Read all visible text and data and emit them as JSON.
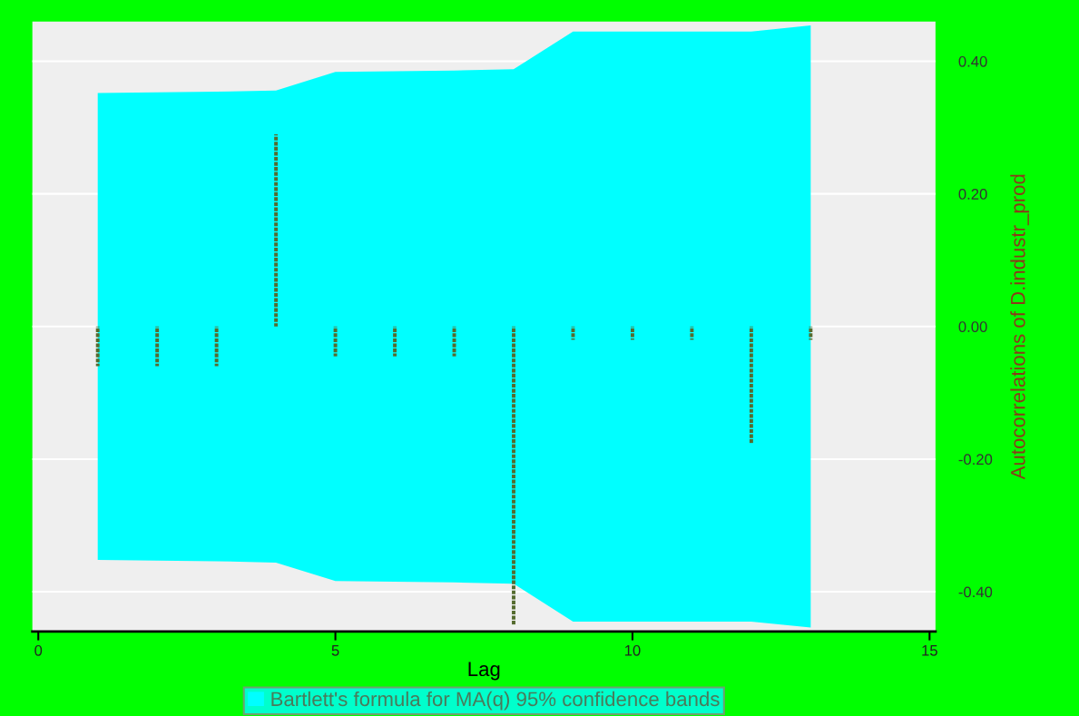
{
  "chart_data": {
    "type": "bar",
    "xlabel": "Lag",
    "ylabel": "Autocorrelations of D.industr_prod",
    "x": [
      1,
      2,
      3,
      4,
      5,
      6,
      7,
      8,
      9,
      10,
      11,
      12,
      13
    ],
    "series": [
      {
        "type": "line",
        "name": "Bartlett's formula for MA(q) 95% confidence bands",
        "color": "#00ffff",
        "values": [
          null,
          null,
          null,
          null,
          null,
          null,
          null,
          null,
          null,
          null,
          null,
          null,
          null
        ],
        "lower": [
          -0.352,
          -0.353,
          -0.354,
          -0.356,
          -0.384,
          -0.385,
          -0.386,
          -0.388,
          -0.445,
          -0.445,
          -0.445,
          -0.445,
          -0.454
        ],
        "upper": [
          0.352,
          0.353,
          0.354,
          0.356,
          0.384,
          0.385,
          0.386,
          0.388,
          0.445,
          0.445,
          0.445,
          0.445,
          0.454
        ]
      },
      {
        "color": "#556b2f",
        "values": [
          -0.06,
          -0.06,
          -0.06,
          0.29,
          -0.045,
          -0.045,
          -0.045,
          -0.45,
          -0.02,
          -0.02,
          -0.02,
          -0.176,
          -0.02
        ],
        "line_style": "dotted"
      }
    ],
    "xlim": [
      -0.1,
      15.1
    ],
    "xticks": [
      0,
      5,
      10,
      15
    ],
    "ylim": [
      -0.46,
      0.46
    ],
    "yticks": [
      {
        "value": -0.4,
        "label": "-0.40"
      },
      {
        "value": -0.2,
        "label": "-0.20"
      },
      {
        "value": 0,
        "label": "0.00"
      },
      {
        "value": 0.2,
        "label": "0.20"
      },
      {
        "value": 0.4,
        "label": "0.40"
      }
    ],
    "grid": "y",
    "legend": "bottom"
  }
}
